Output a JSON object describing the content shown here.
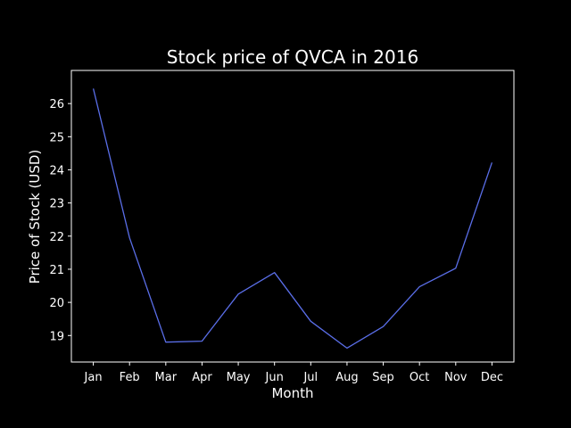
{
  "chart_data": {
    "type": "line",
    "title": "Stock price of QVCA in 2016",
    "xlabel": "Month",
    "ylabel": "Price of Stock (USD)",
    "categories": [
      "Jan",
      "Feb",
      "Mar",
      "Apr",
      "May",
      "Jun",
      "Jul",
      "Aug",
      "Sep",
      "Oct",
      "Nov",
      "Dec"
    ],
    "series": [
      {
        "values": [
          26.45,
          21.95,
          18.8,
          18.83,
          20.25,
          20.9,
          19.43,
          18.62,
          19.27,
          20.47,
          21.03,
          24.22
        ],
        "color": "#5a6ee8"
      }
    ],
    "yticks": [
      19,
      20,
      21,
      22,
      23,
      24,
      25,
      26
    ],
    "ylim": [
      18.2,
      27.0
    ],
    "grid": false,
    "legend": false,
    "background": "#000000",
    "foreground": "#ffffff"
  }
}
